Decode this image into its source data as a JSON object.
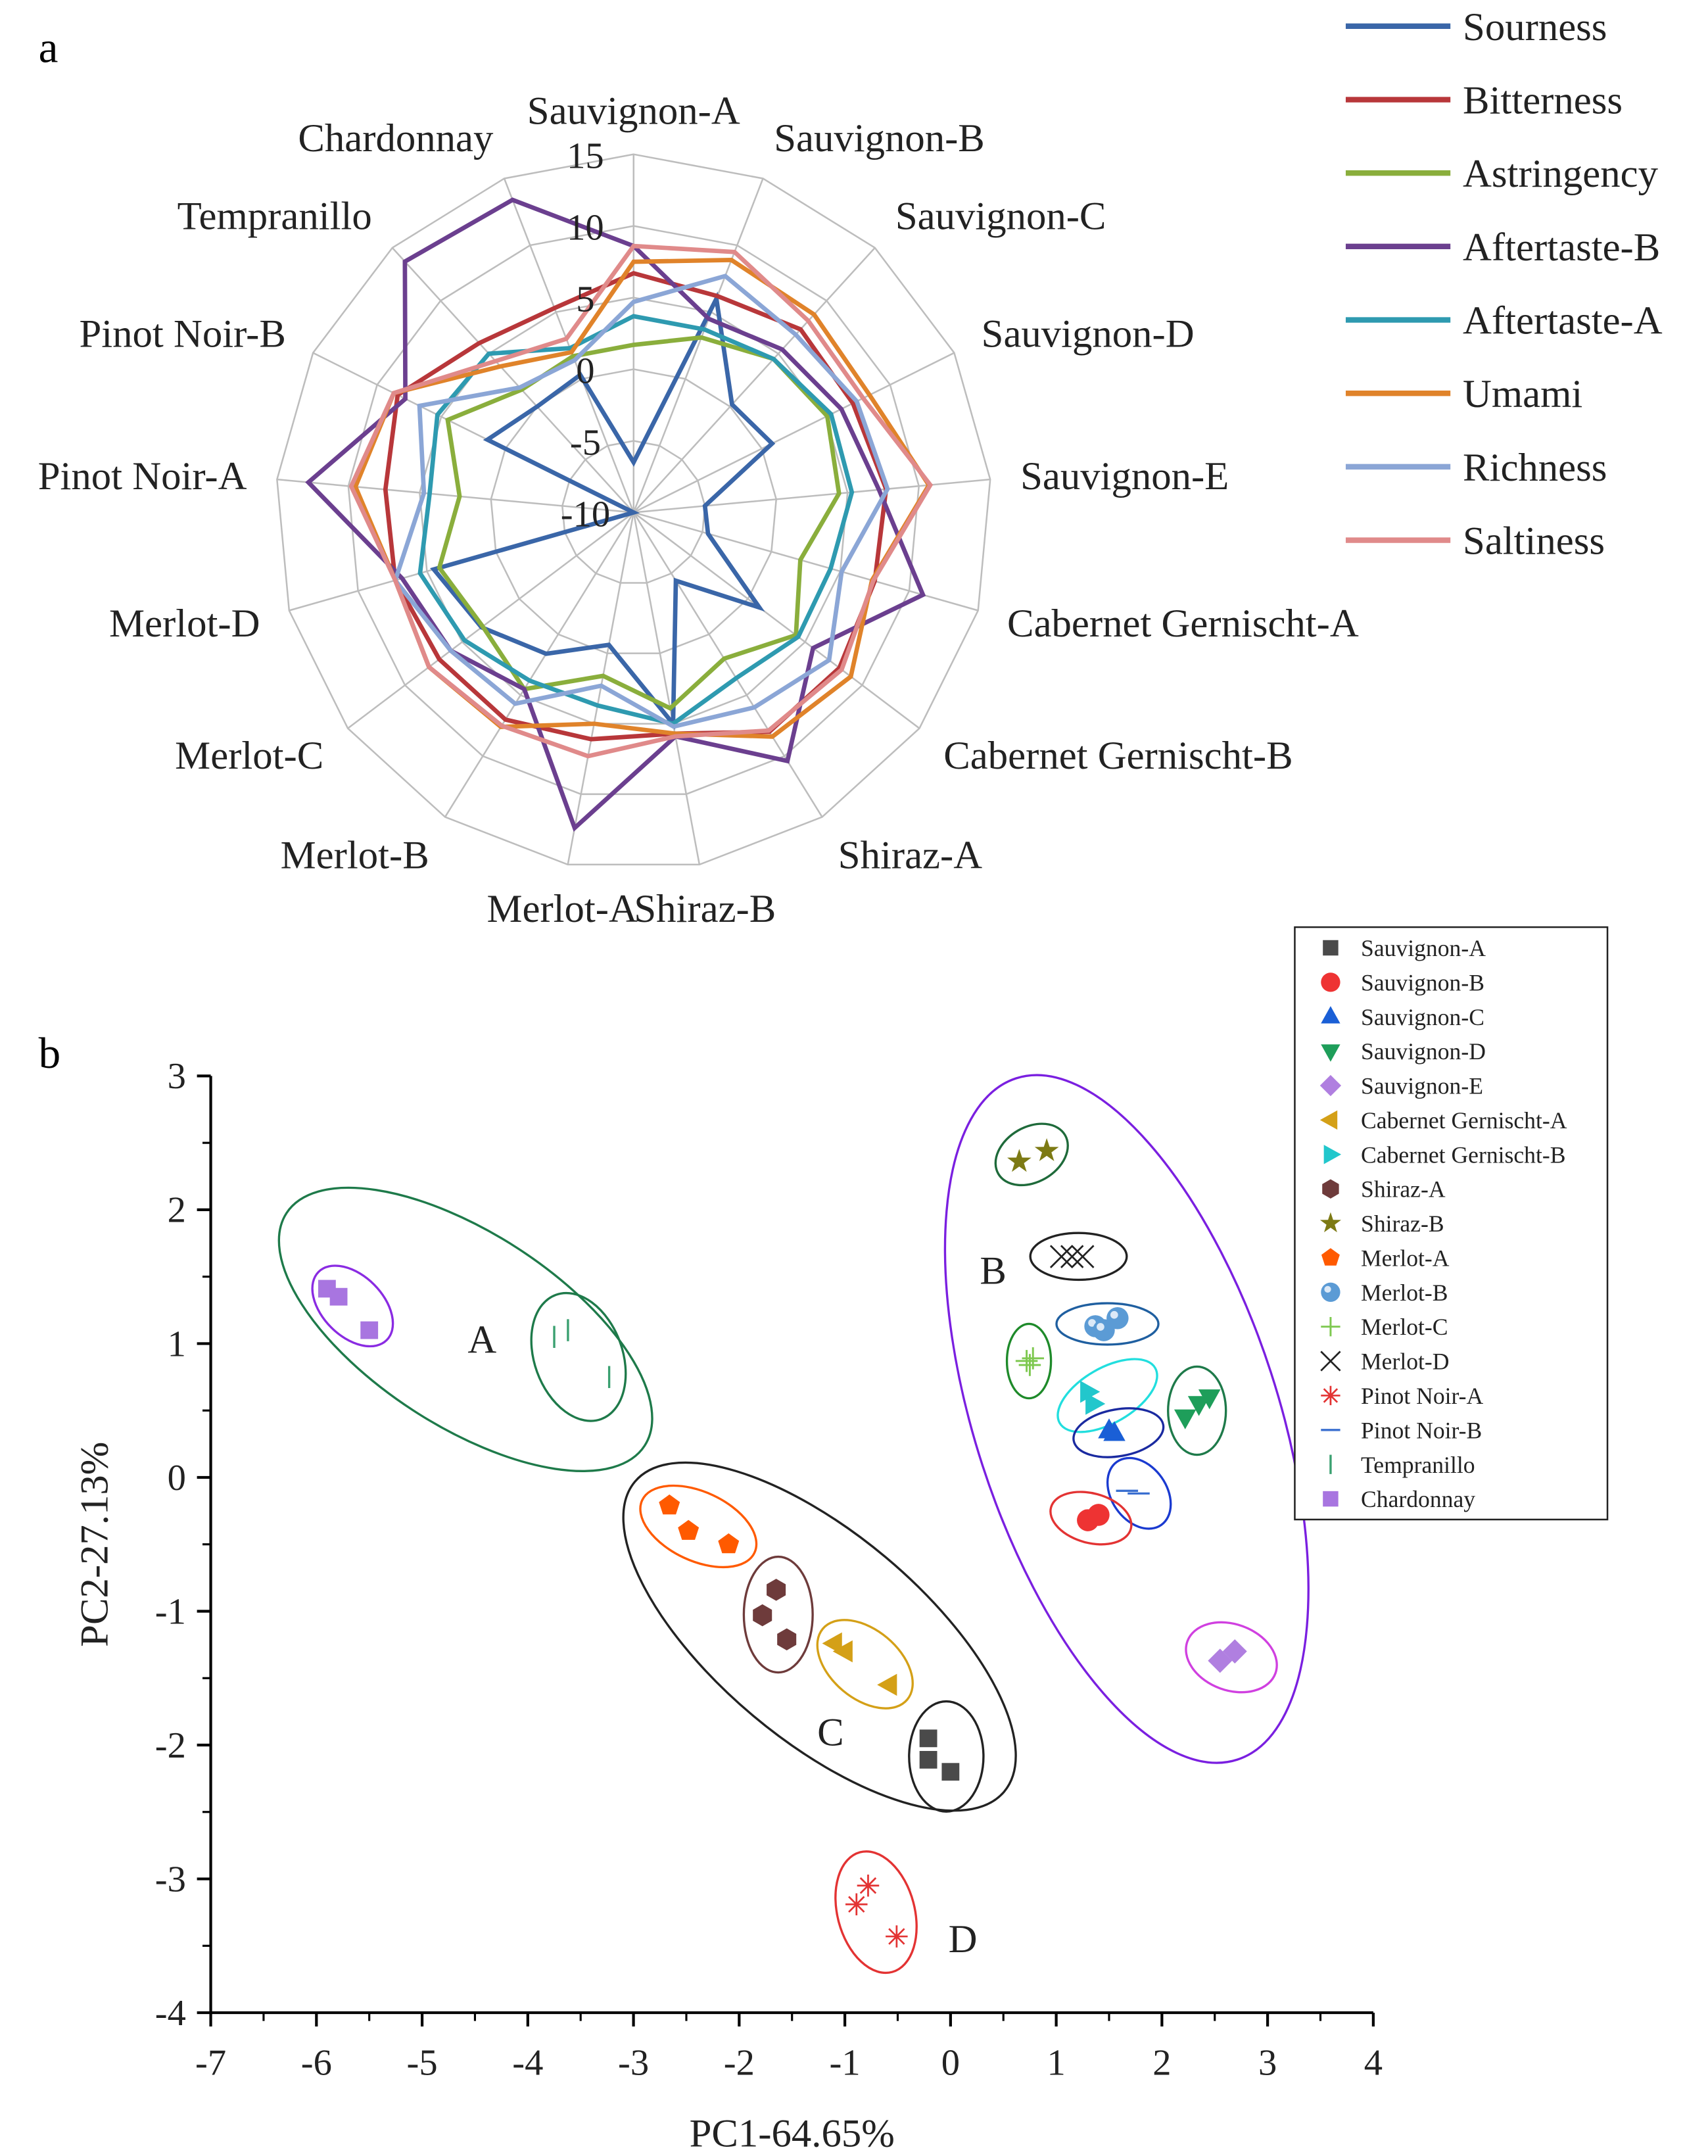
{
  "chart_data": [
    {
      "type": "radar",
      "panel_label": "a",
      "axes": [
        "Sauvignon-A",
        "Sauvignon-B",
        "Sauvignon-C",
        "Sauvignon-D",
        "Sauvignon-E",
        "Cabernet Gernischt-A",
        "Cabernet Gernischt-B",
        "Shiraz-A",
        "Shiraz-B",
        "Merlot-A",
        "Merlot-B",
        "Merlot-C",
        "Merlot-D",
        "Pinot Noir-A",
        "Pinot Noir-B",
        "Tempranillo",
        "Chardonnay"
      ],
      "rlim": [
        -10,
        15
      ],
      "rticks": [
        "-10",
        "-5",
        "0",
        "5",
        "10",
        "15"
      ],
      "rtick_values": [
        -10,
        -5,
        0,
        5,
        10,
        15
      ],
      "legend_placement": "right",
      "series": [
        {
          "name": "Sourness",
          "color": "#3a66a8",
          "values": [
            -6.5,
            6,
            0.2,
            0.8,
            -5,
            -4.6,
            1,
            -4.4,
            5,
            -0.6,
            1.6,
            3.3,
            4.5,
            -10,
            1.4,
            0,
            0.3
          ]
        },
        {
          "name": "Bitterness",
          "color": "#b8373a",
          "values": [
            6.7,
            6.2,
            7.3,
            7.1,
            7.7,
            7.5,
            8,
            8,
            5.7,
            6.1,
            7,
            7,
            7.3,
            7.4,
            8.4,
            6,
            5.3
          ]
        },
        {
          "name": "Astringency",
          "color": "#8aae3c",
          "values": [
            1.7,
            3.1,
            4.5,
            5.1,
            4.4,
            2.1,
            4.2,
            2,
            3.9,
            1.6,
            4.5,
            3.2,
            4.1,
            2.2,
            4.5,
            1.6,
            1.7
          ]
        },
        {
          "name": "Aftertaste-B",
          "color": "#6b3f8f",
          "values": [
            8.6,
            4.5,
            5.4,
            6.2,
            7.2,
            11,
            5.7,
            10.4,
            5.9,
            12.4,
            4.5,
            6,
            6.8,
            12.8,
            7.8,
            13.7,
            13.4
          ]
        },
        {
          "name": "Aftertaste-A",
          "color": "#2e9ab0",
          "values": [
            3.7,
            3.7,
            4.5,
            5.4,
            5.3,
            4.3,
            4.4,
            3.6,
            5,
            3.7,
            3.8,
            4.8,
            5.5,
            4.3,
            5.3,
            5,
            2.3
          ]
        },
        {
          "name": "Umami",
          "color": "#e0832a",
          "values": [
            7.5,
            8.9,
            8.7,
            8.4,
            10.7,
            7.3,
            9,
            8.4,
            5.7,
            5,
            7.6,
            7.9,
            7.3,
            9.5,
            8.7,
            3.8,
            2
          ]
        },
        {
          "name": "Richness",
          "color": "#8ba6d6",
          "values": [
            4.7,
            7.7,
            6.8,
            7.4,
            7.8,
            5.1,
            7.1,
            6,
            5.2,
            2.3,
            5.7,
            6,
            7.3,
            4.7,
            6.7,
            1.8,
            1.4
          ]
        },
        {
          "name": "Saltiness",
          "color": "#e08a8a",
          "values": [
            8.6,
            9.5,
            8.1,
            7.9,
            10.8,
            7.4,
            8.2,
            7.9,
            5.9,
            7.3,
            7.5,
            7.9,
            7.3,
            9.8,
            8.7,
            4.3,
            3
          ]
        }
      ]
    },
    {
      "type": "scatter",
      "panel_label": "b",
      "xlabel": "PC1-64.65%",
      "ylabel": "PC2-27.13%",
      "xlim": [
        -7,
        4
      ],
      "ylim": [
        -4,
        3
      ],
      "xticks": [
        "-7",
        "-6",
        "-5",
        "-4",
        "-3",
        "-2",
        "-1",
        "0",
        "1",
        "2",
        "3",
        "4"
      ],
      "yticks": [
        "-4",
        "-3",
        "-2",
        "-1",
        "0",
        "1",
        "2",
        "3"
      ],
      "legend_placement": "top-right",
      "cluster_labels": [
        "A",
        "B",
        "C",
        "D"
      ],
      "series": [
        {
          "name": "Sauvignon-A",
          "marker": "square",
          "color": "#4a4a4a",
          "points": [
            [
              -0.21,
              -1.95
            ],
            [
              -0.21,
              -2.11
            ],
            [
              0.0,
              -2.2
            ]
          ]
        },
        {
          "name": "Sauvignon-B",
          "marker": "circle",
          "color": "#ee3333",
          "points": [
            [
              1.3,
              -0.32
            ],
            [
              1.4,
              -0.28
            ]
          ]
        },
        {
          "name": "Sauvignon-C",
          "marker": "triangle-up",
          "color": "#1a5fd6",
          "points": [
            [
              1.5,
              0.35
            ],
            [
              1.55,
              0.33
            ]
          ]
        },
        {
          "name": "Sauvignon-D",
          "marker": "triangle-down",
          "color": "#1e9e5a",
          "points": [
            [
              2.22,
              0.45
            ],
            [
              2.35,
              0.55
            ],
            [
              2.45,
              0.6
            ]
          ]
        },
        {
          "name": "Sauvignon-E",
          "marker": "diamond",
          "color": "#b07fe0",
          "points": [
            [
              2.55,
              -1.37
            ],
            [
              2.69,
              -1.3
            ]
          ]
        },
        {
          "name": "Cabernet Gernischt-A",
          "marker": "triangle-left",
          "color": "#d4a017",
          "points": [
            [
              -1.1,
              -1.24
            ],
            [
              -1.0,
              -1.3
            ],
            [
              -0.58,
              -1.55
            ]
          ]
        },
        {
          "name": "Cabernet Gernischt-B",
          "marker": "triangle-right",
          "color": "#22c7cc",
          "points": [
            [
              1.3,
              0.64
            ],
            [
              1.35,
              0.55
            ]
          ]
        },
        {
          "name": "Shiraz-A",
          "marker": "hexagon",
          "color": "#6e3b3b",
          "points": [
            [
              -1.65,
              -0.84
            ],
            [
              -1.78,
              -1.03
            ],
            [
              -1.55,
              -1.21
            ]
          ]
        },
        {
          "name": "Shiraz-B",
          "marker": "star",
          "color": "#7d7a14",
          "points": [
            [
              0.65,
              2.36
            ],
            [
              0.91,
              2.44
            ]
          ]
        },
        {
          "name": "Merlot-A",
          "marker": "pentagon",
          "color": "#ff5a00",
          "points": [
            [
              -2.66,
              -0.21
            ],
            [
              -2.48,
              -0.4
            ],
            [
              -2.1,
              -0.5
            ]
          ]
        },
        {
          "name": "Merlot-B",
          "marker": "sphere",
          "color": "#5b9bd5",
          "points": [
            [
              1.37,
              1.13
            ],
            [
              1.58,
              1.19
            ],
            [
              1.45,
              1.1
            ]
          ]
        },
        {
          "name": "Merlot-C",
          "marker": "plus",
          "color": "#7ec850",
          "points": [
            [
              0.72,
              0.87
            ],
            [
              0.78,
              0.89
            ],
            [
              0.75,
              0.84
            ]
          ]
        },
        {
          "name": "Merlot-D",
          "marker": "x",
          "color": "#222222",
          "points": [
            [
              1.05,
              1.65
            ],
            [
              1.15,
              1.65
            ],
            [
              1.25,
              1.65
            ]
          ]
        },
        {
          "name": "Pinot Noir-A",
          "marker": "asterisk",
          "color": "#e33333",
          "points": [
            [
              -0.78,
              -3.05
            ],
            [
              -0.89,
              -3.19
            ],
            [
              -0.51,
              -3.43
            ]
          ]
        },
        {
          "name": "Pinot Noir-B",
          "marker": "hline",
          "color": "#3a6fd0",
          "points": [
            [
              1.67,
              -0.1
            ],
            [
              1.78,
              -0.12
            ]
          ]
        },
        {
          "name": "Tempranillo",
          "marker": "vline",
          "color": "#3aa070",
          "points": [
            [
              -3.75,
              1.05
            ],
            [
              -3.62,
              1.1
            ],
            [
              -3.23,
              0.75
            ]
          ]
        },
        {
          "name": "Chardonnay",
          "marker": "square",
          "color": "#a875e0",
          "points": [
            [
              -5.9,
              1.41
            ],
            [
              -5.79,
              1.35
            ],
            [
              -5.5,
              1.1
            ]
          ]
        }
      ]
    }
  ]
}
